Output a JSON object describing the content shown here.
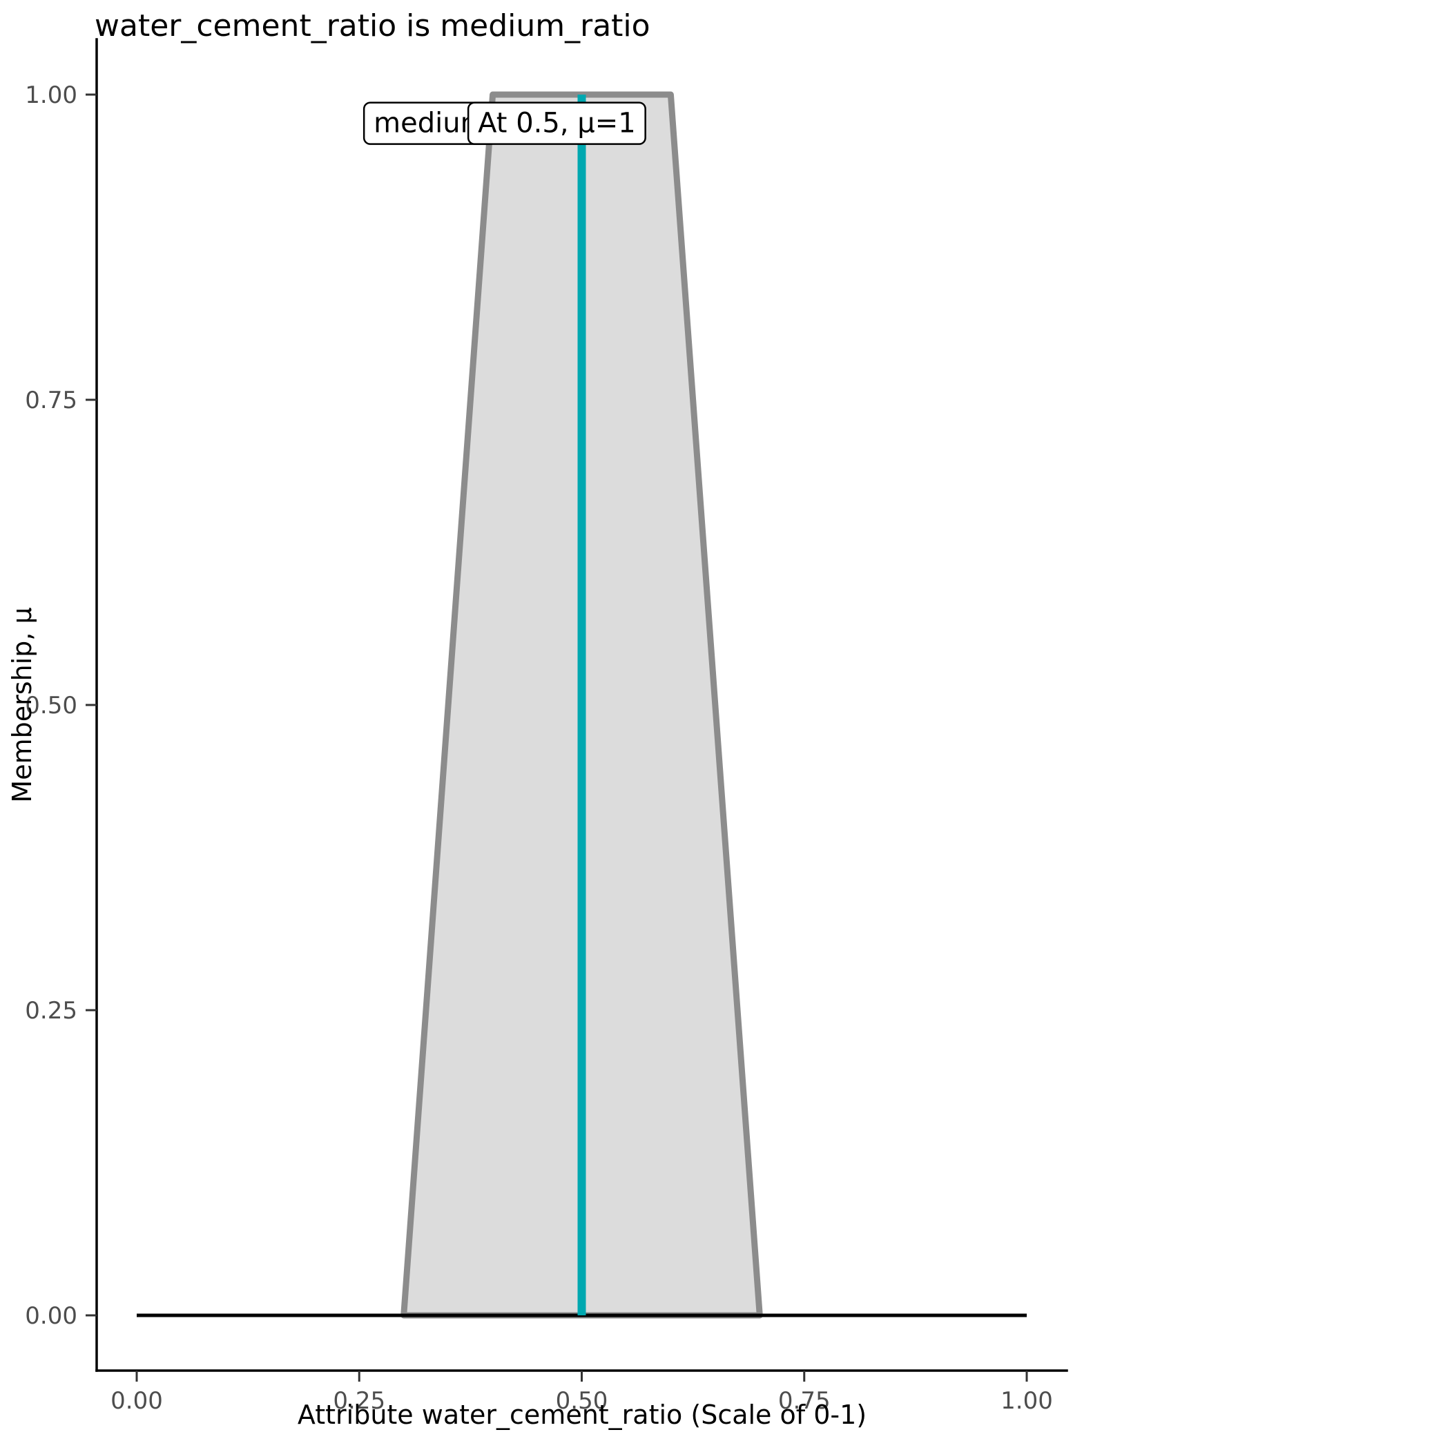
{
  "chart_data": {
    "type": "area",
    "title": "water_cement_ratio is medium_ratio",
    "xlabel": "Attribute water_cement_ratio (Scale of 0-1)",
    "ylabel": "Membership, μ",
    "xlim": [
      0,
      1
    ],
    "ylim": [
      0,
      1
    ],
    "grid": "off",
    "legend": "none",
    "x_ticks": [
      0,
      0.25,
      0.5,
      0.75,
      1
    ],
    "x_tick_labels": [
      "0.00",
      "0.25",
      "0.50",
      "0.75",
      "1.00"
    ],
    "y_ticks": [
      0,
      0.25,
      0.5,
      0.75,
      1
    ],
    "y_tick_labels": [
      "0.00",
      "0.25",
      "0.50",
      "0.75",
      "1.00"
    ],
    "fuzzy_set_polygon": [
      [
        0.3,
        0
      ],
      [
        0.4,
        1
      ],
      [
        0.6,
        1
      ],
      [
        0.7,
        0
      ]
    ],
    "membership_curve": [
      [
        0,
        0
      ],
      [
        0.3,
        0
      ],
      [
        0.4,
        1
      ],
      [
        0.6,
        1
      ],
      [
        0.7,
        0
      ],
      [
        1,
        0
      ]
    ],
    "baseline": {
      "y": 0,
      "x_from": 0,
      "x_to": 1
    },
    "indicator_line": {
      "x": 0.5,
      "y_from": 0,
      "y_to": 1
    },
    "annotations": [
      {
        "text": "medium",
        "x": 0.33,
        "y": 0.977
      },
      {
        "text": "At 0.5, μ=1",
        "x": 0.472,
        "y": 0.977
      }
    ],
    "colors": {
      "set_fill": "#dcdcdc",
      "set_outline": "#8c8c8c",
      "baseline": "#000000",
      "indicator": "#00a8b0",
      "annotation_bg": "#ffffff",
      "annotation_border": "#000000"
    }
  }
}
